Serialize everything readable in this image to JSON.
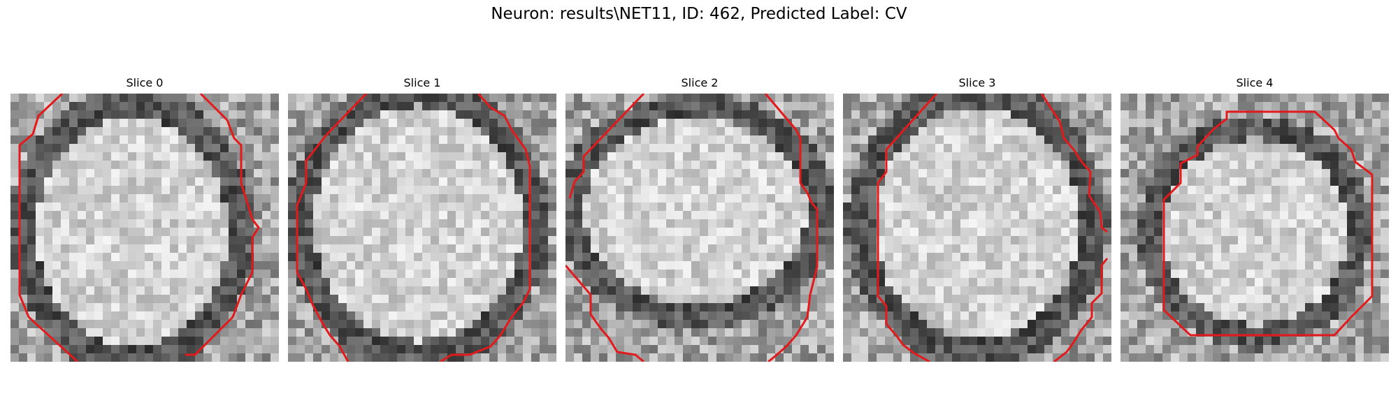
{
  "figure": {
    "title": "Neuron: results\\NET11, ID: 462, Predicted Label: CV"
  },
  "colors": {
    "contour": "#e31a1c",
    "background": "#ffffff"
  },
  "panels": [
    {
      "title": "Slice 0"
    },
    {
      "title": "Slice 1"
    },
    {
      "title": "Slice 2"
    },
    {
      "title": "Slice 3"
    },
    {
      "title": "Slice 4"
    }
  ]
}
